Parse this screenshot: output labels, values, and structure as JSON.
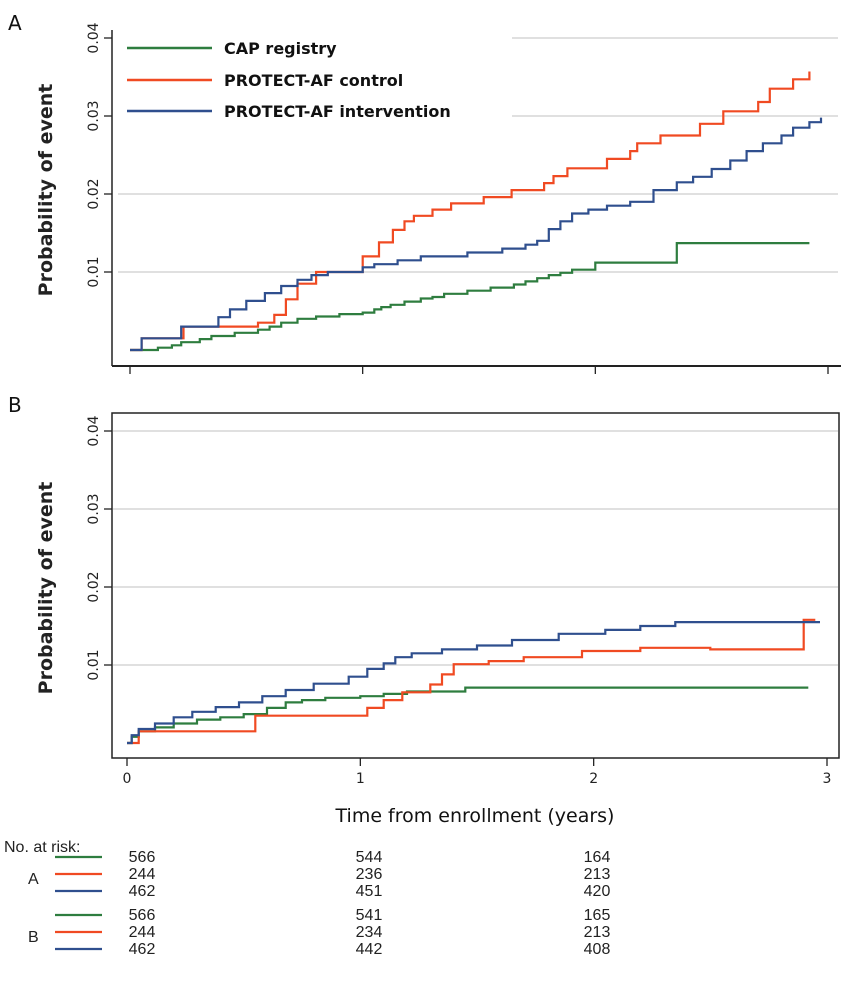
{
  "colors": {
    "cap": "#2e7d3f",
    "control": "#f04a22",
    "intervention": "#2f4f8e",
    "grid": "#d6d6d6",
    "axis": "#222222"
  },
  "legend": {
    "cap": "CAP registry",
    "control": "PROTECT-AF control",
    "intervention": "PROTECT-AF intervention"
  },
  "risk": {
    "header": "No. at risk:",
    "x_positions": [
      0,
      1,
      2
    ],
    "groups": [
      {
        "label": "A",
        "rows": [
          {
            "series": "cap",
            "values": [
              "566",
              "544",
              "164"
            ]
          },
          {
            "series": "control",
            "values": [
              "244",
              "236",
              "213"
            ]
          },
          {
            "series": "intervention",
            "values": [
              "462",
              "451",
              "420"
            ]
          }
        ]
      },
      {
        "label": "B",
        "rows": [
          {
            "series": "cap",
            "values": [
              "566",
              "541",
              "165"
            ]
          },
          {
            "series": "control",
            "values": [
              "244",
              "234",
              "213"
            ]
          },
          {
            "series": "intervention",
            "values": [
              "462",
              "442",
              "408"
            ]
          }
        ]
      }
    ]
  },
  "chart_data": [
    {
      "type": "line",
      "panel": "A",
      "ylabel": "Probability of event",
      "xlim": [
        0,
        3
      ],
      "ylim": [
        0,
        0.04
      ],
      "yticks": [
        0.01,
        0.02,
        0.03,
        0.04
      ],
      "ytick_labels": [
        "0.01",
        "0.02",
        "0.03",
        "0.04"
      ],
      "grid": "horizontal",
      "legend_position": "top-left",
      "series": [
        {
          "key": "cap",
          "name": "CAP registry",
          "x": [
            0,
            0.12,
            0.18,
            0.22,
            0.3,
            0.35,
            0.45,
            0.55,
            0.6,
            0.65,
            0.72,
            0.8,
            0.9,
            1.0,
            1.05,
            1.08,
            1.12,
            1.18,
            1.25,
            1.3,
            1.35,
            1.45,
            1.55,
            1.65,
            1.7,
            1.75,
            1.8,
            1.85,
            1.9,
            2.0,
            2.3,
            2.35,
            2.92
          ],
          "y": [
            0,
            0.0003,
            0.0006,
            0.001,
            0.0014,
            0.0018,
            0.0022,
            0.0026,
            0.003,
            0.0035,
            0.004,
            0.0043,
            0.0046,
            0.0048,
            0.0052,
            0.0055,
            0.0058,
            0.0062,
            0.0066,
            0.0068,
            0.0072,
            0.0076,
            0.008,
            0.0084,
            0.0088,
            0.0092,
            0.0096,
            0.0099,
            0.0103,
            0.0112,
            0.0112,
            0.0137,
            0.0137
          ]
        },
        {
          "key": "control",
          "name": "PROTECT-AF control",
          "x": [
            0,
            0.05,
            0.23,
            0.55,
            0.62,
            0.67,
            0.72,
            0.8,
            1.0,
            1.07,
            1.13,
            1.18,
            1.22,
            1.3,
            1.38,
            1.52,
            1.64,
            1.78,
            1.82,
            1.88,
            2.05,
            2.15,
            2.18,
            2.28,
            2.45,
            2.55,
            2.7,
            2.75,
            2.85,
            2.92
          ],
          "y": [
            0,
            0.0015,
            0.003,
            0.0035,
            0.0045,
            0.0065,
            0.0085,
            0.01,
            0.012,
            0.0138,
            0.0154,
            0.0165,
            0.0172,
            0.018,
            0.0188,
            0.0196,
            0.0205,
            0.0214,
            0.0223,
            0.0233,
            0.0245,
            0.0255,
            0.0265,
            0.0275,
            0.029,
            0.0306,
            0.0318,
            0.0335,
            0.0347,
            0.0357
          ]
        },
        {
          "key": "intervention",
          "name": "PROTECT-AF intervention",
          "x": [
            0,
            0.05,
            0.22,
            0.38,
            0.43,
            0.5,
            0.58,
            0.65,
            0.72,
            0.78,
            0.85,
            1.0,
            1.05,
            1.15,
            1.25,
            1.45,
            1.6,
            1.7,
            1.75,
            1.8,
            1.85,
            1.9,
            1.97,
            2.05,
            2.15,
            2.25,
            2.35,
            2.42,
            2.5,
            2.58,
            2.65,
            2.72,
            2.8,
            2.85,
            2.92,
            2.97
          ],
          "y": [
            0,
            0.0015,
            0.003,
            0.0042,
            0.0052,
            0.0063,
            0.0073,
            0.0082,
            0.009,
            0.0096,
            0.01,
            0.0106,
            0.011,
            0.0115,
            0.012,
            0.0125,
            0.013,
            0.0135,
            0.014,
            0.0155,
            0.0165,
            0.0175,
            0.018,
            0.0185,
            0.019,
            0.0205,
            0.0215,
            0.0222,
            0.0232,
            0.0243,
            0.0255,
            0.0265,
            0.0275,
            0.0285,
            0.0292,
            0.0298
          ]
        }
      ]
    },
    {
      "type": "line",
      "panel": "B",
      "ylabel": "Probability of event",
      "xlabel": "Time from enrollment (years)",
      "xlim": [
        0,
        3
      ],
      "xticks": [
        0,
        1,
        2,
        3
      ],
      "xtick_labels": [
        "0",
        "1",
        "2",
        "3"
      ],
      "ylim": [
        0,
        0.04
      ],
      "yticks": [
        0.01,
        0.02,
        0.03,
        0.04
      ],
      "ytick_labels": [
        "0.01",
        "0.02",
        "0.03",
        "0.04"
      ],
      "grid": "horizontal",
      "series": [
        {
          "key": "cap",
          "name": "CAP registry",
          "x": [
            0,
            0.02,
            0.05,
            0.12,
            0.2,
            0.3,
            0.4,
            0.5,
            0.6,
            0.68,
            0.75,
            0.85,
            1.0,
            1.1,
            1.2,
            1.45,
            2.92
          ],
          "y": [
            0,
            0.0008,
            0.0015,
            0.002,
            0.0025,
            0.003,
            0.0033,
            0.0037,
            0.0045,
            0.0052,
            0.0055,
            0.0058,
            0.006,
            0.0063,
            0.0066,
            0.0071,
            0.0071
          ]
        },
        {
          "key": "control",
          "name": "PROTECT-AF control",
          "x": [
            0,
            0.05,
            0.55,
            1.03,
            1.1,
            1.18,
            1.3,
            1.35,
            1.4,
            1.55,
            1.7,
            1.95,
            2.2,
            2.35,
            2.5,
            2.9,
            2.95
          ],
          "y": [
            0,
            0.0015,
            0.0035,
            0.0045,
            0.0055,
            0.0065,
            0.0075,
            0.0088,
            0.0101,
            0.0105,
            0.011,
            0.0118,
            0.0122,
            0.0122,
            0.012,
            0.0158,
            0.0158
          ]
        },
        {
          "key": "intervention",
          "name": "PROTECT-AF intervention",
          "x": [
            0,
            0.02,
            0.05,
            0.12,
            0.2,
            0.28,
            0.38,
            0.48,
            0.58,
            0.68,
            0.8,
            0.95,
            1.03,
            1.1,
            1.15,
            1.22,
            1.35,
            1.5,
            1.65,
            1.85,
            2.05,
            2.2,
            2.35,
            2.5,
            2.65,
            2.8,
            2.97
          ],
          "y": [
            0,
            0.001,
            0.0018,
            0.0025,
            0.0033,
            0.004,
            0.0046,
            0.0052,
            0.006,
            0.0068,
            0.0076,
            0.0085,
            0.0095,
            0.0102,
            0.011,
            0.0115,
            0.012,
            0.0125,
            0.0132,
            0.014,
            0.0145,
            0.015,
            0.0155,
            0.0155,
            0.0155,
            0.0155,
            0.0155
          ]
        }
      ]
    }
  ]
}
